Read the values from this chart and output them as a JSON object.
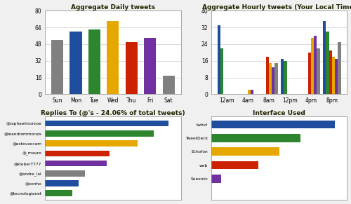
{
  "daily_title": "Aggregate Daily tweets",
  "daily_days": [
    "Sun",
    "Mon",
    "Tue",
    "Wed",
    "Thu",
    "Fri",
    "Sat"
  ],
  "daily_values": [
    52,
    60,
    62,
    70,
    50,
    54,
    18
  ],
  "daily_colors": [
    "#808080",
    "#1f4e9e",
    "#2d862d",
    "#e6a800",
    "#cc2200",
    "#7030a0",
    "#808080"
  ],
  "daily_ylim": [
    0,
    80
  ],
  "daily_yticks": [
    0,
    16,
    32,
    48,
    64,
    80
  ],
  "hourly_title": "Aggregate Hourly tweets (Your Local Time)",
  "hourly_labels": [
    "12am",
    "4am",
    "8am",
    "12pm",
    "4pm",
    "8pm"
  ],
  "hourly_colors": [
    "#1f4e9e",
    "#2d862d",
    "#cc2200",
    "#e6a800",
    "#7030a0",
    "#808080"
  ],
  "hourly_slot_data": [
    [
      33,
      22,
      0,
      0,
      0,
      0
    ],
    [
      0,
      0,
      0,
      2,
      2,
      0
    ],
    [
      0,
      0,
      18,
      15,
      13,
      15
    ],
    [
      17,
      16,
      0,
      0,
      0,
      0
    ],
    [
      0,
      0,
      20,
      27,
      28,
      22
    ],
    [
      35,
      30,
      21,
      18,
      17,
      25
    ]
  ],
  "hourly_ylim": [
    0,
    40
  ],
  "hourly_yticks": [
    0,
    8,
    16,
    24,
    32,
    40
  ],
  "replies_title": "Replies To (@'s - 24.06% of total tweets)",
  "replies_names": [
    "@raphaelmonroe",
    "@leandrommorais",
    "@estevaocam",
    "@_mauro",
    "@kleber7777",
    "@andre_lal",
    "@xonho",
    "@tecnologianet"
  ],
  "replies_values": [
    100,
    88,
    75,
    52,
    50,
    32,
    27,
    22
  ],
  "replies_colors": [
    "#1f4e9e",
    "#2d862d",
    "#e6a800",
    "#cc2200",
    "#7030a0",
    "#808080",
    "#1f4e9e",
    "#2d862d"
  ],
  "interface_title": "Interface Used",
  "interface_names": [
    "twhirl",
    "TweetDeck",
    "Echofon",
    "web",
    "Seesmic",
    ""
  ],
  "interface_values": [
    100,
    72,
    55,
    38,
    8,
    0
  ],
  "interface_colors": [
    "#1f4e9e",
    "#2d862d",
    "#e6a800",
    "#cc2200",
    "#7030a0",
    "#808080"
  ],
  "bg_color": "#f0f0f0",
  "plot_bg": "#ffffff",
  "title_color": "#222200",
  "title_fontsize": 6.5,
  "tick_fontsize": 5.5
}
